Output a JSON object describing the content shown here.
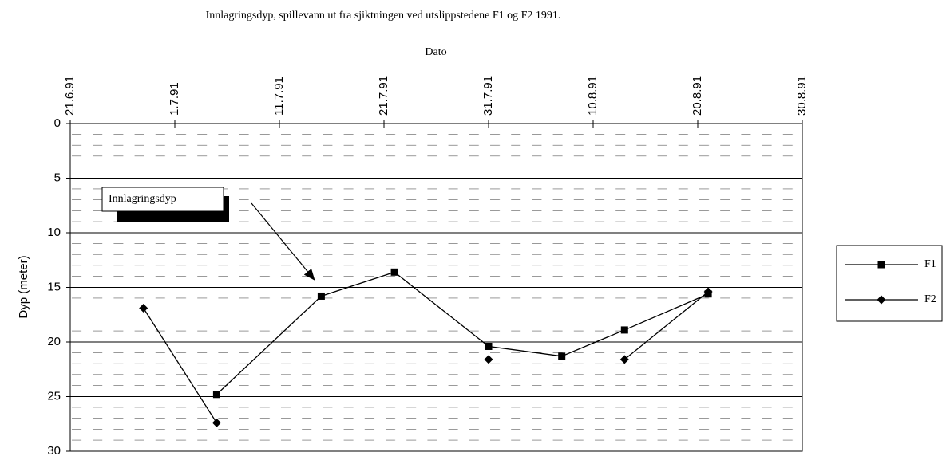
{
  "chart_data": {
    "type": "line",
    "title": "Innlagringsdyp, spillevann ut fra sjiktningen ved utslippstedene F1 og F2 1991.",
    "x_label": "Dato",
    "y_label": "Dyp (meter)",
    "annotation": "Innlagringsdyp",
    "x": [
      "28.6.91",
      "5.7.91",
      "15.7.91",
      "22.7.91",
      "31.7.91",
      "7.8.91",
      "13.8.91",
      "21.8.91"
    ],
    "series": [
      {
        "name": "F1",
        "color": "#000000",
        "marker": "square",
        "values": [
          null,
          24.8,
          15.8,
          13.6,
          20.4,
          21.3,
          18.9,
          15.6
        ]
      },
      {
        "name": "F2",
        "color": "#000000",
        "marker": "diamond",
        "values": [
          16.9,
          27.4,
          null,
          null,
          21.6,
          null,
          21.6,
          15.4
        ]
      }
    ],
    "xlim": [
      "21.6.91",
      "30.8.91"
    ],
    "xticks": [
      "21.6.91",
      "1.7.91",
      "11.7.91",
      "21.7.91",
      "31.7.91",
      "10.8.91",
      "20.8.91",
      "30.8.91"
    ],
    "ylim": [
      0,
      30
    ],
    "yticks": [
      0,
      5,
      10,
      15,
      20,
      25,
      30
    ],
    "y_reversed": true,
    "grid": true,
    "legend": "right"
  }
}
